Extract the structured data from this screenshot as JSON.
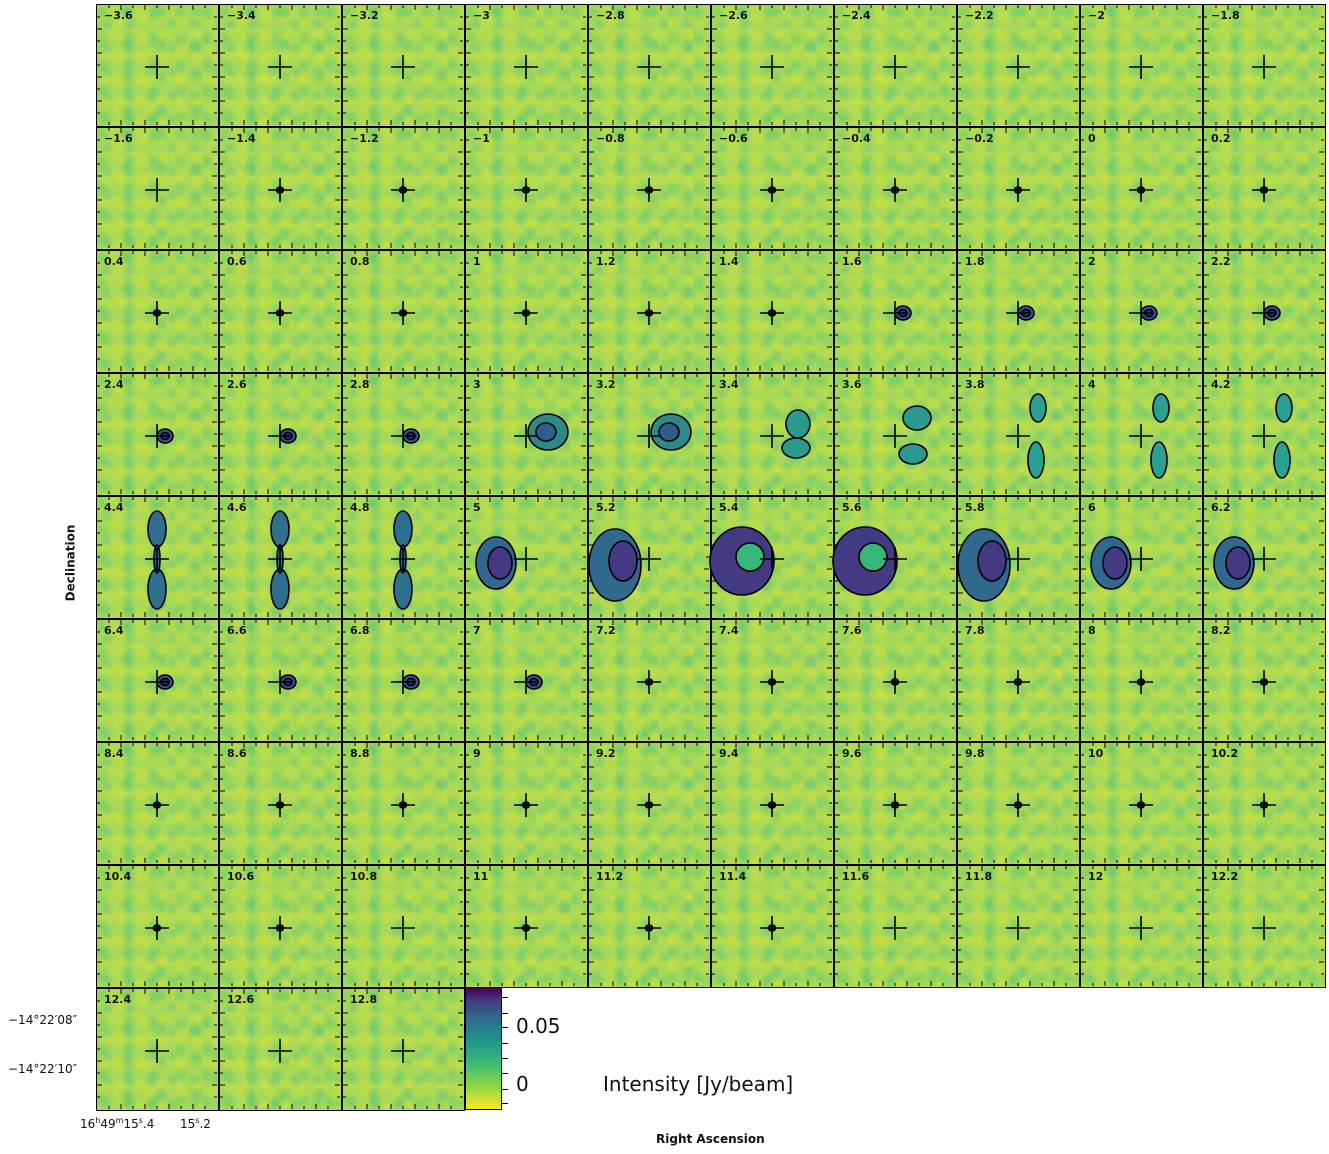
{
  "chart_data": {
    "type": "channel-map",
    "xlabel": "Right Ascension",
    "ylabel": "Declination",
    "colorbar": {
      "label": "Intensity [Jy/beam]",
      "tick_labels": [
        "0.05",
        "0"
      ],
      "colormap": "viridis (reversed)",
      "colors": [
        "#fde725",
        "#90d743",
        "#35b779",
        "#21918c",
        "#31688e",
        "#443983",
        "#440154"
      ]
    },
    "dec_tick_labels": [
      "−14°22′08″",
      "−14°22′10″"
    ],
    "ra_tick_labels": {
      "first": {
        "h": "16",
        "m": "49",
        "s": "15",
        "frac": "4"
      },
      "second": {
        "s": "15",
        "frac": "2"
      }
    },
    "channels": [
      "−3.6",
      "−3.4",
      "−3.2",
      "−3",
      "−2.8",
      "−2.6",
      "−2.4",
      "−2.2",
      "−2",
      "−1.8",
      "−1.6",
      "−1.4",
      "−1.2",
      "−1",
      "−0.8",
      "−0.6",
      "−0.4",
      "−0.2",
      "0",
      "0.2",
      "0.4",
      "0.6",
      "0.8",
      "1",
      "1.2",
      "1.4",
      "1.6",
      "1.8",
      "2",
      "2.2",
      "2.4",
      "2.6",
      "2.8",
      "3",
      "3.2",
      "3.4",
      "3.6",
      "3.8",
      "4",
      "4.2",
      "4.4",
      "4.6",
      "4.8",
      "5",
      "5.2",
      "5.4",
      "5.6",
      "5.8",
      "6",
      "6.2",
      "6.4",
      "6.6",
      "6.8",
      "7",
      "7.2",
      "7.4",
      "7.6",
      "7.8",
      "8",
      "8.2",
      "8.4",
      "8.6",
      "8.8",
      "9",
      "9.2",
      "9.4",
      "9.6",
      "9.8",
      "10",
      "10.2",
      "10.4",
      "10.6",
      "10.8",
      "11",
      "11.2",
      "11.4",
      "11.6",
      "11.8",
      "12",
      "12.2",
      "12.4",
      "12.6",
      "12.8"
    ],
    "emission": [
      0,
      0,
      0,
      0,
      0,
      0,
      0,
      0,
      0,
      0,
      0,
      1,
      1,
      1,
      1,
      1,
      1,
      1,
      1,
      1,
      1,
      1,
      1,
      1,
      1,
      1,
      2,
      2,
      2,
      2,
      2,
      2,
      2,
      3,
      3,
      4,
      5,
      6,
      6,
      6,
      7,
      7,
      7,
      8,
      9,
      10,
      10,
      9,
      8,
      8,
      2,
      2,
      2,
      2,
      1,
      1,
      1,
      1,
      1,
      1,
      1,
      1,
      1,
      1,
      1,
      1,
      1,
      1,
      1,
      1,
      1,
      1,
      0,
      1,
      1,
      1,
      0,
      0,
      0,
      0,
      0,
      0,
      0
    ]
  }
}
